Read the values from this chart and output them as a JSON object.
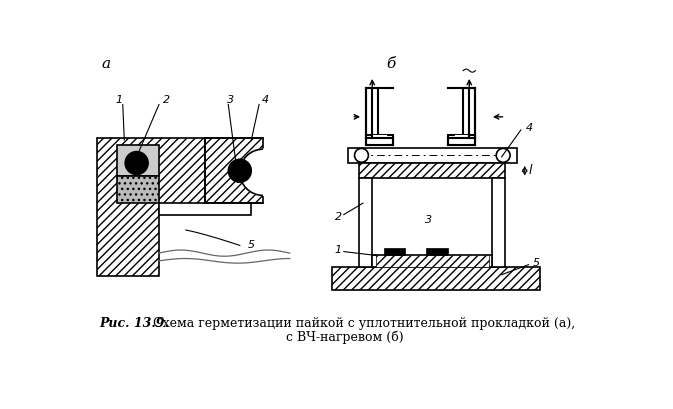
{
  "title_a": "a",
  "title_b": "б",
  "caption_bold": "Рис. 13.9.",
  "caption_text": " Схема герметизации пайкой с уплотнительной прокладкой (а),",
  "caption_text2": "с ВЧ-нагревом (б)",
  "bg_color": "#ffffff",
  "line_color": "#000000"
}
